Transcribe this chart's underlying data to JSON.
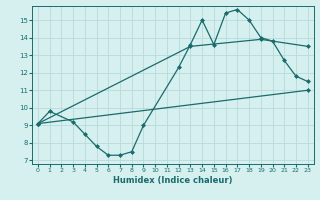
{
  "title": "",
  "xlabel": "Humidex (Indice chaleur)",
  "xlim": [
    -0.5,
    23.5
  ],
  "ylim": [
    6.8,
    15.8
  ],
  "xticks": [
    0,
    1,
    2,
    3,
    4,
    5,
    6,
    7,
    8,
    9,
    10,
    11,
    12,
    13,
    14,
    15,
    16,
    17,
    18,
    19,
    20,
    21,
    22,
    23
  ],
  "yticks": [
    7,
    8,
    9,
    10,
    11,
    12,
    13,
    14,
    15
  ],
  "bg_color": "#d6f0f0",
  "grid_color": "#b8dada",
  "line_color": "#1a6b6b",
  "line1_x": [
    0,
    1,
    3,
    4,
    5,
    6,
    7,
    8,
    9,
    12,
    13,
    14,
    15,
    16,
    17,
    18,
    19,
    20,
    21,
    22,
    23
  ],
  "line1_y": [
    9.1,
    9.8,
    9.2,
    8.5,
    7.8,
    7.3,
    7.3,
    7.5,
    9.0,
    12.3,
    13.6,
    15.0,
    13.6,
    15.4,
    15.6,
    15.0,
    14.0,
    13.8,
    12.7,
    11.8,
    11.5
  ],
  "line2_x": [
    0,
    13,
    19,
    23
  ],
  "line2_y": [
    9.1,
    13.5,
    13.9,
    13.5
  ],
  "line3_x": [
    0,
    23
  ],
  "line3_y": [
    9.1,
    11.0
  ],
  "marker_size": 2.5,
  "line_width": 0.9
}
